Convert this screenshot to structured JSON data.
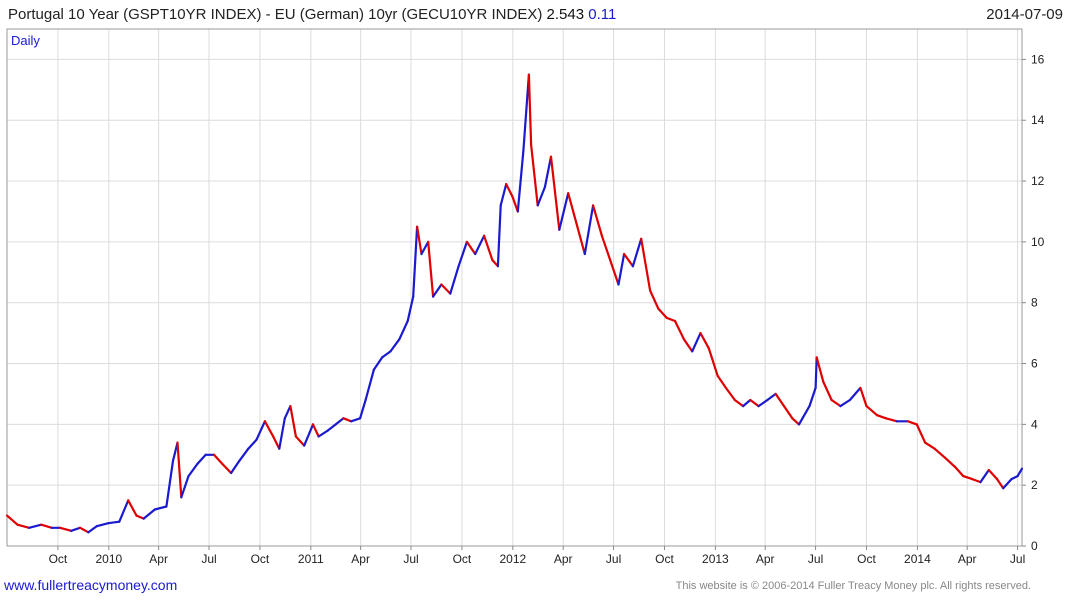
{
  "header": {
    "title": "Portugal 10 Year (GSPT10YR INDEX) - EU (German) 10yr (GECU10YR INDEX)",
    "last_value": "2.543",
    "change": "0.11",
    "date": "2014-07-09"
  },
  "colors": {
    "up": "#1a1ad0",
    "down": "#e00000",
    "grid": "#dcdcdc",
    "axis": "#888888"
  },
  "chart_data": {
    "type": "line",
    "title": "Portugal 10 Year (GSPT10YR INDEX) - EU (German) 10yr (GECU10YR INDEX)",
    "period_label": "Daily",
    "ylim": [
      0,
      17
    ],
    "y_ticks": [
      0,
      2,
      4,
      6,
      8,
      10,
      12,
      14,
      16
    ],
    "x_range": [
      "2009-07-01",
      "2014-07-09"
    ],
    "x_ticks": [
      {
        "label": "Oct",
        "date": "2009-10-01"
      },
      {
        "label": "2010",
        "date": "2010-01-01"
      },
      {
        "label": "Apr",
        "date": "2010-04-01"
      },
      {
        "label": "Jul",
        "date": "2010-07-01"
      },
      {
        "label": "Oct",
        "date": "2010-10-01"
      },
      {
        "label": "2011",
        "date": "2011-01-01"
      },
      {
        "label": "Apr",
        "date": "2011-04-01"
      },
      {
        "label": "Jul",
        "date": "2011-07-01"
      },
      {
        "label": "Oct",
        "date": "2011-10-01"
      },
      {
        "label": "2012",
        "date": "2012-01-01"
      },
      {
        "label": "Apr",
        "date": "2012-04-01"
      },
      {
        "label": "Jul",
        "date": "2012-07-01"
      },
      {
        "label": "Oct",
        "date": "2012-10-01"
      },
      {
        "label": "2013",
        "date": "2013-01-01"
      },
      {
        "label": "Apr",
        "date": "2013-04-01"
      },
      {
        "label": "Jul",
        "date": "2013-07-01"
      },
      {
        "label": "Oct",
        "date": "2013-10-01"
      },
      {
        "label": "2014",
        "date": "2014-01-01"
      },
      {
        "label": "Apr",
        "date": "2014-04-01"
      },
      {
        "label": "Jul",
        "date": "2014-07-01"
      }
    ],
    "grid": true,
    "series": [
      {
        "name": "",
        "points": [
          [
            "2009-07-01",
            1.0
          ],
          [
            "2009-07-20",
            0.7
          ],
          [
            "2009-08-10",
            0.6
          ],
          [
            "2009-09-01",
            0.7
          ],
          [
            "2009-09-20",
            0.6
          ],
          [
            "2009-10-05",
            0.6
          ],
          [
            "2009-10-25",
            0.5
          ],
          [
            "2009-11-10",
            0.6
          ],
          [
            "2009-11-25",
            0.45
          ],
          [
            "2009-12-10",
            0.65
          ],
          [
            "2009-12-31",
            0.75
          ],
          [
            "2010-01-20",
            0.8
          ],
          [
            "2010-02-05",
            1.5
          ],
          [
            "2010-02-20",
            1.0
          ],
          [
            "2010-03-05",
            0.9
          ],
          [
            "2010-03-25",
            1.2
          ],
          [
            "2010-04-15",
            1.3
          ],
          [
            "2010-04-27",
            2.8
          ],
          [
            "2010-05-05",
            3.4
          ],
          [
            "2010-05-12",
            1.6
          ],
          [
            "2010-05-25",
            2.3
          ],
          [
            "2010-06-10",
            2.7
          ],
          [
            "2010-06-25",
            3.0
          ],
          [
            "2010-07-10",
            3.0
          ],
          [
            "2010-07-25",
            2.7
          ],
          [
            "2010-08-10",
            2.4
          ],
          [
            "2010-08-25",
            2.8
          ],
          [
            "2010-09-10",
            3.2
          ],
          [
            "2010-09-25",
            3.5
          ],
          [
            "2010-10-10",
            4.1
          ],
          [
            "2010-10-25",
            3.6
          ],
          [
            "2010-11-05",
            3.2
          ],
          [
            "2010-11-15",
            4.2
          ],
          [
            "2010-11-25",
            4.6
          ],
          [
            "2010-12-05",
            3.6
          ],
          [
            "2010-12-20",
            3.3
          ],
          [
            "2011-01-05",
            4.0
          ],
          [
            "2011-01-15",
            3.6
          ],
          [
            "2011-02-01",
            3.8
          ],
          [
            "2011-02-15",
            4.0
          ],
          [
            "2011-03-01",
            4.2
          ],
          [
            "2011-03-15",
            4.1
          ],
          [
            "2011-03-31",
            4.2
          ],
          [
            "2011-04-10",
            4.8
          ],
          [
            "2011-04-25",
            5.8
          ],
          [
            "2011-05-10",
            6.2
          ],
          [
            "2011-05-25",
            6.4
          ],
          [
            "2011-06-10",
            6.8
          ],
          [
            "2011-06-25",
            7.4
          ],
          [
            "2011-07-05",
            8.2
          ],
          [
            "2011-07-12",
            10.5
          ],
          [
            "2011-07-20",
            9.6
          ],
          [
            "2011-08-01",
            10.0
          ],
          [
            "2011-08-10",
            8.2
          ],
          [
            "2011-08-25",
            8.6
          ],
          [
            "2011-09-10",
            8.3
          ],
          [
            "2011-09-25",
            9.2
          ],
          [
            "2011-10-10",
            10.0
          ],
          [
            "2011-10-25",
            9.6
          ],
          [
            "2011-11-10",
            10.2
          ],
          [
            "2011-11-25",
            9.4
          ],
          [
            "2011-12-05",
            9.2
          ],
          [
            "2011-12-10",
            11.2
          ],
          [
            "2011-12-20",
            11.9
          ],
          [
            "2011-12-31",
            11.5
          ],
          [
            "2012-01-10",
            11.0
          ],
          [
            "2012-01-20",
            13.0
          ],
          [
            "2012-01-30",
            15.5
          ],
          [
            "2012-02-03",
            13.2
          ],
          [
            "2012-02-15",
            11.2
          ],
          [
            "2012-02-28",
            11.8
          ],
          [
            "2012-03-10",
            12.8
          ],
          [
            "2012-03-25",
            10.4
          ],
          [
            "2012-04-10",
            11.6
          ],
          [
            "2012-04-25",
            10.6
          ],
          [
            "2012-05-10",
            9.6
          ],
          [
            "2012-05-25",
            11.2
          ],
          [
            "2012-06-10",
            10.2
          ],
          [
            "2012-06-25",
            9.4
          ],
          [
            "2012-07-10",
            8.6
          ],
          [
            "2012-07-20",
            9.6
          ],
          [
            "2012-08-05",
            9.2
          ],
          [
            "2012-08-20",
            10.1
          ],
          [
            "2012-09-05",
            8.4
          ],
          [
            "2012-09-20",
            7.8
          ],
          [
            "2012-10-05",
            7.5
          ],
          [
            "2012-10-20",
            7.4
          ],
          [
            "2012-11-05",
            6.8
          ],
          [
            "2012-11-20",
            6.4
          ],
          [
            "2012-12-05",
            7.0
          ],
          [
            "2012-12-20",
            6.5
          ],
          [
            "2013-01-05",
            5.6
          ],
          [
            "2013-01-20",
            5.2
          ],
          [
            "2013-02-05",
            4.8
          ],
          [
            "2013-02-20",
            4.6
          ],
          [
            "2013-03-05",
            4.8
          ],
          [
            "2013-03-20",
            4.6
          ],
          [
            "2013-04-05",
            4.8
          ],
          [
            "2013-04-20",
            5.0
          ],
          [
            "2013-05-05",
            4.6
          ],
          [
            "2013-05-20",
            4.2
          ],
          [
            "2013-06-01",
            4.0
          ],
          [
            "2013-06-20",
            4.6
          ],
          [
            "2013-07-01",
            5.2
          ],
          [
            "2013-07-03",
            6.2
          ],
          [
            "2013-07-15",
            5.4
          ],
          [
            "2013-07-30",
            4.8
          ],
          [
            "2013-08-15",
            4.6
          ],
          [
            "2013-09-01",
            4.8
          ],
          [
            "2013-09-20",
            5.2
          ],
          [
            "2013-10-01",
            4.6
          ],
          [
            "2013-10-20",
            4.3
          ],
          [
            "2013-11-05",
            4.2
          ],
          [
            "2013-11-25",
            4.1
          ],
          [
            "2013-12-15",
            4.1
          ],
          [
            "2013-12-31",
            4.0
          ],
          [
            "2014-01-15",
            3.4
          ],
          [
            "2014-02-01",
            3.2
          ],
          [
            "2014-02-20",
            2.9
          ],
          [
            "2014-03-10",
            2.6
          ],
          [
            "2014-03-25",
            2.3
          ],
          [
            "2014-04-10",
            2.2
          ],
          [
            "2014-04-25",
            2.1
          ],
          [
            "2014-05-10",
            2.5
          ],
          [
            "2014-05-25",
            2.2
          ],
          [
            "2014-06-05",
            1.9
          ],
          [
            "2014-06-20",
            2.2
          ],
          [
            "2014-07-01",
            2.3
          ],
          [
            "2014-07-09",
            2.543
          ]
        ]
      }
    ]
  },
  "footer": {
    "site": "www.fullertreacymoney.com",
    "copyright": "This website is © 2006-2014 Fuller Treacy Money plc. All rights reserved."
  }
}
